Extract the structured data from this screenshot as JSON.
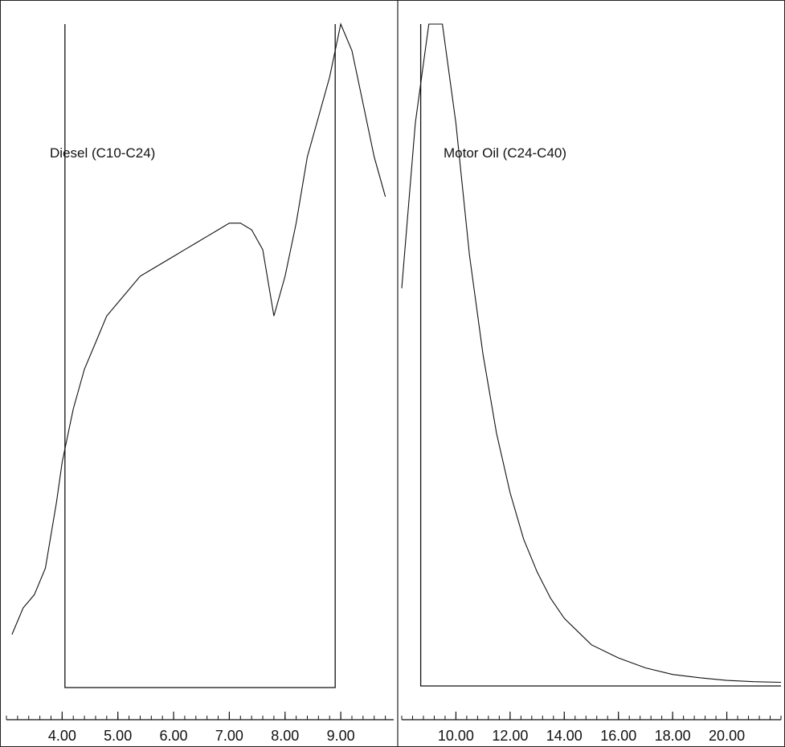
{
  "chart_data": [
    {
      "type": "line",
      "annotation": "Diesel (C10-C24)",
      "window_label": "Diesel (C10-C24)",
      "xlim": [
        3.0,
        9.95
      ],
      "ticks": [
        "4.00",
        "5.00",
        "6.00",
        "7.00",
        "8.00",
        "9.00"
      ],
      "tick_values": [
        4,
        5,
        6,
        7,
        8,
        9
      ],
      "window_x": [
        4.05,
        8.9
      ],
      "series": [
        {
          "x": [
            3.1,
            3.3,
            3.5,
            3.7,
            3.9,
            4.0,
            4.2,
            4.4,
            4.6,
            4.8,
            5.0,
            5.2,
            5.4,
            5.6,
            5.8,
            6.0,
            6.2,
            6.4,
            6.6,
            6.8,
            7.0,
            7.2,
            7.4,
            7.6,
            7.8,
            8.0,
            8.2,
            8.4,
            8.6,
            8.8,
            9.0,
            9.2,
            9.4,
            9.6,
            9.8
          ],
          "values": [
            8,
            12,
            14,
            18,
            28,
            34,
            42,
            48,
            52,
            56,
            58,
            60,
            62,
            63,
            64,
            65,
            66,
            67,
            68,
            69,
            70,
            70,
            69,
            66,
            56,
            62,
            70,
            80,
            86,
            92,
            100,
            96,
            88,
            80,
            74
          ]
        }
      ]
    },
    {
      "type": "line",
      "annotation": "Motor Oil (C24-C40)",
      "window_label": "Motor Oil (C24-C40)",
      "xlim": [
        8.0,
        22.0
      ],
      "ticks": [
        "10.00",
        "12.00",
        "14.00",
        "16.00",
        "18.00",
        "20.00"
      ],
      "tick_values": [
        10,
        12,
        14,
        16,
        18,
        20
      ],
      "window_x": [
        8.7,
        22.0
      ],
      "series": [
        {
          "x": [
            8.0,
            8.5,
            9.0,
            9.5,
            10.0,
            10.5,
            11.0,
            11.5,
            12.0,
            12.5,
            13.0,
            13.5,
            14.0,
            14.5,
            15.0,
            16.0,
            17.0,
            18.0,
            19.0,
            20.0,
            21.0,
            22.0
          ],
          "values": [
            60,
            85,
            100,
            100,
            85,
            65,
            50,
            38,
            29,
            22,
            17,
            13,
            10,
            8,
            6,
            4,
            2.5,
            1.5,
            1.0,
            0.6,
            0.4,
            0.3
          ]
        }
      ]
    }
  ]
}
